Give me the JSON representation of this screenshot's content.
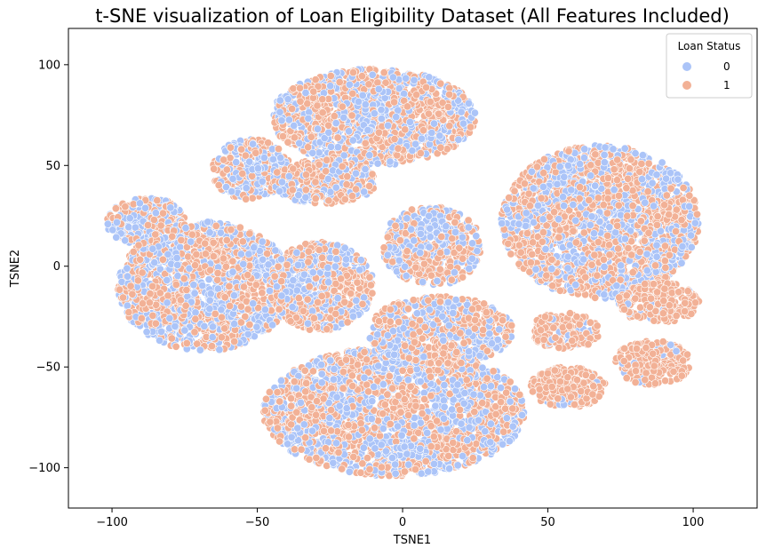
{
  "chart_data": {
    "type": "scatter",
    "title": "t-SNE visualization of Loan Eligibility Dataset (All Features Included)",
    "xlabel": "TSNE1",
    "ylabel": "TSNE2",
    "xlim": [
      -115,
      122
    ],
    "ylim": [
      -120,
      118
    ],
    "xticks": [
      -100,
      -50,
      0,
      50,
      100
    ],
    "yticks": [
      -100,
      -50,
      0,
      50,
      100
    ],
    "xtick_labels": [
      "−100",
      "−50",
      "0",
      "50",
      "100"
    ],
    "ytick_labels": [
      "−100",
      "−50",
      "0",
      "50",
      "100"
    ],
    "grid": false,
    "legend": {
      "title": "Loan Status",
      "placement": "top-right",
      "entries": [
        {
          "label": "0",
          "color": "#abc4f8"
        },
        {
          "label": "1",
          "color": "#f2b196"
        }
      ]
    },
    "series": [
      {
        "name": "0",
        "color": "#abc4f8"
      },
      {
        "name": "1",
        "color": "#f2b196"
      }
    ],
    "clusters": [
      {
        "center": [
          -10,
          74
        ],
        "spread": [
          35,
          24
        ],
        "class1_share": 0.58
      },
      {
        "center": [
          -52,
          48
        ],
        "spread": [
          14,
          15
        ],
        "class1_share": 0.55
      },
      {
        "center": [
          -27,
          42
        ],
        "spread": [
          18,
          11
        ],
        "class1_share": 0.6
      },
      {
        "center": [
          -88,
          22
        ],
        "spread": [
          14,
          12
        ],
        "class1_share": 0.45
      },
      {
        "center": [
          -68,
          -10
        ],
        "spread": [
          30,
          32
        ],
        "class1_share": 0.52
      },
      {
        "center": [
          -28,
          -10
        ],
        "spread": [
          18,
          22
        ],
        "class1_share": 0.6
      },
      {
        "center": [
          10,
          10
        ],
        "spread": [
          17,
          20
        ],
        "class1_share": 0.5
      },
      {
        "center": [
          68,
          22
        ],
        "spread": [
          34,
          38
        ],
        "class1_share": 0.57
      },
      {
        "center": [
          -3,
          -72
        ],
        "spread": [
          45,
          32
        ],
        "class1_share": 0.55
      },
      {
        "center": [
          13,
          -32
        ],
        "spread": [
          25,
          17
        ],
        "class1_share": 0.55
      },
      {
        "center": [
          56,
          -32
        ],
        "spread": [
          12,
          9
        ],
        "class1_share": 0.98
      },
      {
        "center": [
          57,
          -60
        ],
        "spread": [
          13,
          10
        ],
        "class1_share": 0.98
      },
      {
        "center": [
          88,
          -18
        ],
        "spread": [
          14,
          10
        ],
        "class1_share": 0.96
      },
      {
        "center": [
          86,
          -48
        ],
        "spread": [
          13,
          11
        ],
        "class1_share": 0.98
      }
    ]
  }
}
